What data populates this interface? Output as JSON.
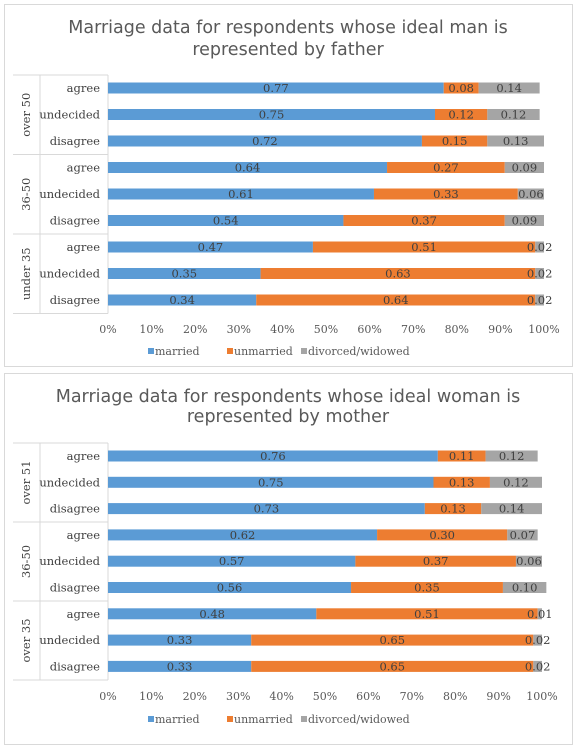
{
  "colors": {
    "married": "#5b9bd5",
    "unmarried": "#ed7d31",
    "divorced": "#a5a5a5"
  },
  "chart_data": [
    {
      "type": "bar",
      "orientation": "horizontal",
      "stacked": "percent",
      "title_lines": [
        "Marriage data for respondents whose ideal man is",
        "represented by father"
      ],
      "groups": [
        {
          "name": "over 50",
          "categories": [
            "agree",
            "undecided",
            "disagree"
          ]
        },
        {
          "name": "36-50",
          "categories": [
            "agree",
            "undecided",
            "disagree"
          ]
        },
        {
          "name": "under 35",
          "categories": [
            "agree",
            "undecided",
            "disagree"
          ]
        }
      ],
      "series": [
        {
          "name": "married",
          "color": "#5b9bd5",
          "values": [
            0.77,
            0.75,
            0.72,
            0.64,
            0.61,
            0.54,
            0.47,
            0.35,
            0.34
          ]
        },
        {
          "name": "unmarried",
          "color": "#ed7d31",
          "values": [
            0.08,
            0.12,
            0.15,
            0.27,
            0.33,
            0.37,
            0.51,
            0.63,
            0.64
          ]
        },
        {
          "name": "divorced/widowed",
          "color": "#a5a5a5",
          "values": [
            0.14,
            0.12,
            0.13,
            0.09,
            0.06,
            0.09,
            0.02,
            0.02,
            0.02
          ]
        }
      ],
      "x_ticks": [
        "0%",
        "10%",
        "20%",
        "30%",
        "40%",
        "50%",
        "60%",
        "70%",
        "80%",
        "90%",
        "100%"
      ],
      "xlim": [
        0,
        1
      ],
      "legend_position": "bottom",
      "grid": false
    },
    {
      "type": "bar",
      "orientation": "horizontal",
      "stacked": "percent",
      "title_lines": [
        "Marriage data for respondents whose ideal woman is",
        "represented by mother"
      ],
      "groups": [
        {
          "name": "over 51",
          "categories": [
            "agree",
            "undecided",
            "disagree"
          ]
        },
        {
          "name": "36-50",
          "categories": [
            "agree",
            "undecided",
            "disagree"
          ]
        },
        {
          "name": "over 35",
          "categories": [
            "agree",
            "undecided",
            "disagree"
          ]
        }
      ],
      "series": [
        {
          "name": "married",
          "color": "#5b9bd5",
          "values": [
            0.76,
            0.75,
            0.73,
            0.62,
            0.57,
            0.56,
            0.48,
            0.33,
            0.33
          ]
        },
        {
          "name": "unmarried",
          "color": "#ed7d31",
          "values": [
            0.11,
            0.13,
            0.13,
            0.3,
            0.37,
            0.35,
            0.51,
            0.65,
            0.65
          ]
        },
        {
          "name": "divorced/widowed",
          "color": "#a5a5a5",
          "values": [
            0.12,
            0.12,
            0.14,
            0.07,
            0.06,
            0.1,
            0.01,
            0.02,
            0.02
          ]
        }
      ],
      "x_ticks": [
        "0%",
        "10%",
        "20%",
        "30%",
        "40%",
        "50%",
        "60%",
        "70%",
        "80%",
        "90%",
        "100%"
      ],
      "xlim": [
        0,
        1
      ],
      "legend_position": "bottom",
      "grid": false
    }
  ]
}
